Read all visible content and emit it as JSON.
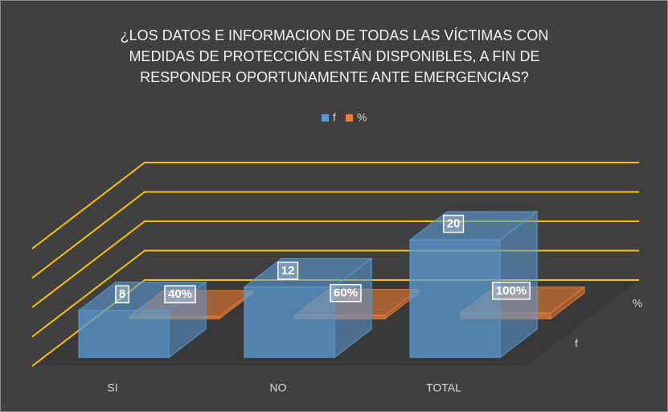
{
  "chart_data": {
    "type": "bar3d",
    "title": "¿LOS DATOS E INFORMACION DE TODAS LAS VÍCTIMAS CON MEDIDAS DE PROTECCIÓN ESTÁN DISPONIBLES, A FIN DE RESPONDER OPORTUNAMENTE ANTE EMERGENCIAS?",
    "categories": [
      "SI",
      "NO",
      "TOTAL"
    ],
    "series": [
      {
        "name": "f",
        "color": "#5b9bd5",
        "values": [
          8,
          12,
          20
        ]
      },
      {
        "name": "%",
        "color": "#ed7d31",
        "values": [
          0.4,
          0.6,
          1
        ],
        "value_labels": [
          "40%",
          "60%",
          "100%"
        ]
      }
    ],
    "ylim": [
      0,
      20
    ],
    "yticks": [
      0,
      5,
      10,
      15,
      20
    ],
    "grid": true,
    "grid_color": "#ffc000",
    "legend": "top"
  }
}
